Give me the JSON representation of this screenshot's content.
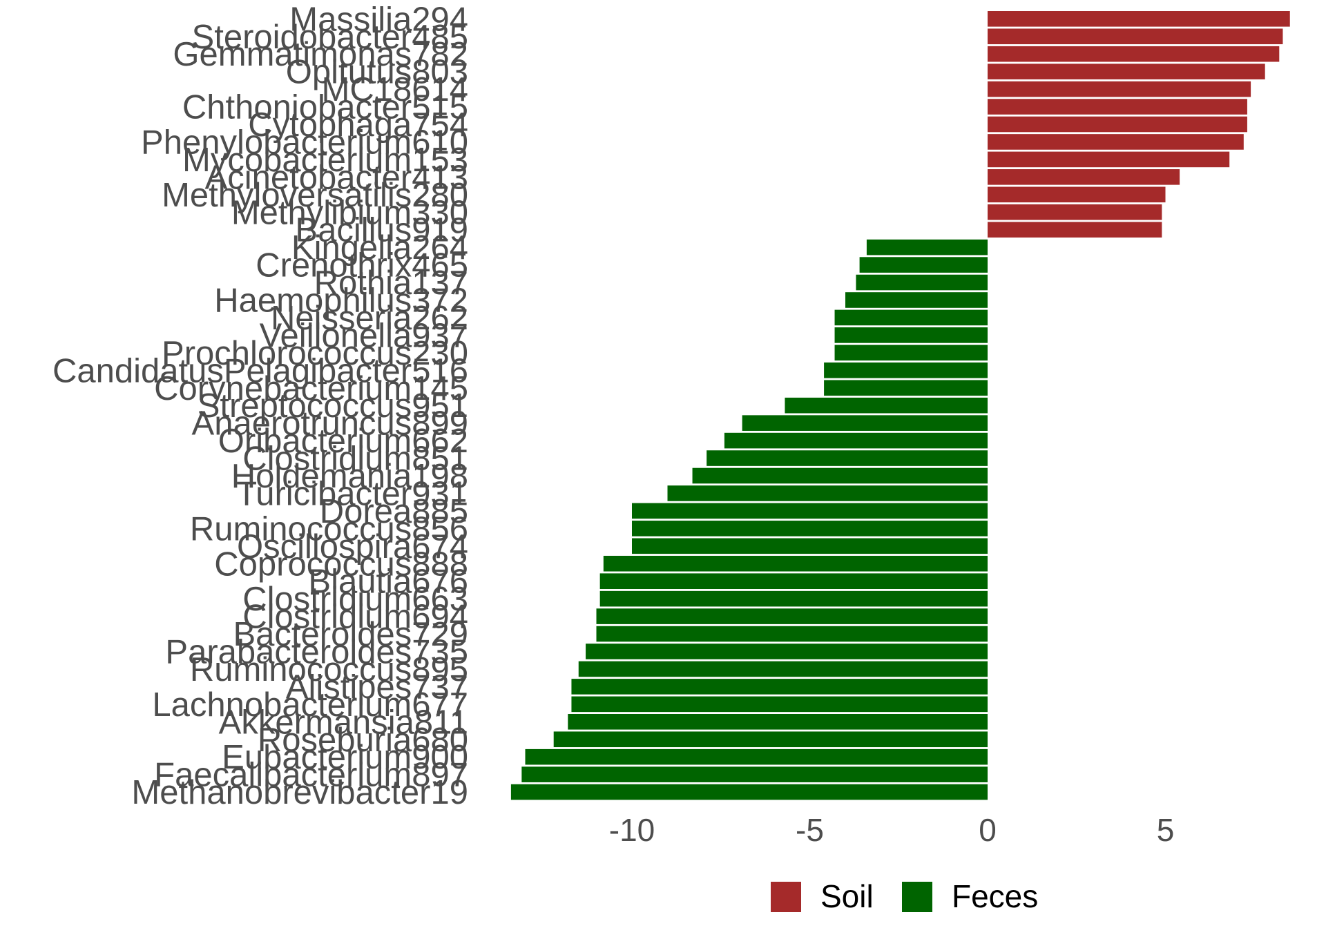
{
  "chart_data": {
    "type": "bar",
    "orientation": "horizontal",
    "title": "",
    "xlabel": "",
    "ylabel": "",
    "xlim": [
      -13.5,
      9.2
    ],
    "x_ticks": [
      -10,
      -5,
      0,
      5
    ],
    "x_tick_labels": [
      "-10",
      "-5",
      "0",
      "5"
    ],
    "grid": false,
    "legend_position": "bottom",
    "colors": {
      "Soil": "#a52a2a",
      "Feces": "#006400"
    },
    "legend": [
      {
        "name": "Soil",
        "color": "#a52a2a"
      },
      {
        "name": "Feces",
        "color": "#006400"
      }
    ],
    "categories": [
      "Massilia294",
      "Steroidobacter485",
      "Gemmatimonas782",
      "Opitutus803",
      "MC18614",
      "Chthoniobacter515",
      "Cytophaga754",
      "Phenylobacterium610",
      "Mycobacterium153",
      "Acinetobacter413",
      "Methyloversatilis280",
      "Methylibium330",
      "Bacillus919",
      "Kingella264",
      "Crenothrix465",
      "Rothia137",
      "Haemophilus372",
      "Neisseria262",
      "Veillonella937",
      "Prochlorococcus230",
      "CandidatusPelagibacter516",
      "Corynebacterium145",
      "Streptococcus951",
      "Anaerotruncus899",
      "Oribacterium662",
      "Clostridium851",
      "Holdemania198",
      "Turicibacter931",
      "Dorea885",
      "Ruminococcus856",
      "Oscillospira674",
      "Coprococcus888",
      "Blautia676",
      "Clostridium663",
      "Clostridium694",
      "Bacteroides729",
      "Parabacteroides735",
      "Ruminococcus895",
      "Alistipes737",
      "Lachnobacterium677",
      "Akkermansia811",
      "Roseburia680",
      "Eubacterium900",
      "Faecalibacterium897",
      "Methanobrevibacter19"
    ],
    "series": [
      {
        "name": "Soil",
        "color": "#a52a2a",
        "values": [
          8.5,
          8.3,
          8.2,
          7.8,
          7.4,
          7.3,
          7.3,
          7.2,
          6.8,
          5.4,
          5.0,
          4.9,
          4.9,
          null,
          null,
          null,
          null,
          null,
          null,
          null,
          null,
          null,
          null,
          null,
          null,
          null,
          null,
          null,
          null,
          null,
          null,
          null,
          null,
          null,
          null,
          null,
          null,
          null,
          null,
          null,
          null,
          null,
          null,
          null,
          null
        ]
      },
      {
        "name": "Feces",
        "color": "#006400",
        "values": [
          null,
          null,
          null,
          null,
          null,
          null,
          null,
          null,
          null,
          null,
          null,
          null,
          null,
          -3.4,
          -3.6,
          -3.7,
          -4.0,
          -4.3,
          -4.3,
          -4.3,
          -4.6,
          -4.6,
          -5.7,
          -6.9,
          -7.4,
          -7.9,
          -8.3,
          -9.0,
          -10.0,
          -10.0,
          -10.0,
          -10.8,
          -10.9,
          -10.9,
          -11.0,
          -11.0,
          -11.3,
          -11.5,
          -11.7,
          -11.7,
          -11.8,
          -12.2,
          -13.0,
          -13.1,
          -13.4
        ]
      }
    ]
  }
}
